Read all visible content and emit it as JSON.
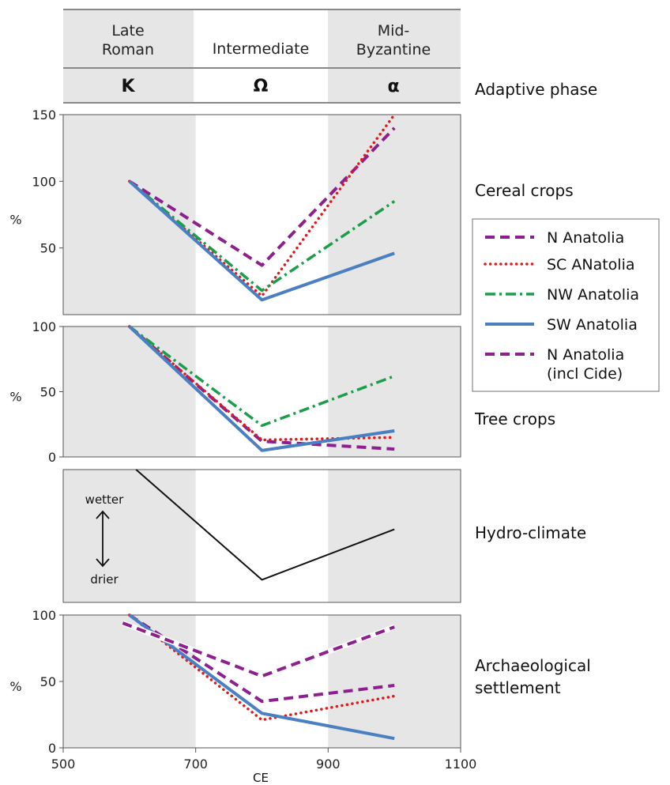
{
  "header": {
    "periods": [
      {
        "label_lines": [
          "Late",
          "Roman"
        ],
        "symbol": "K"
      },
      {
        "label_lines": [
          "Intermediate"
        ],
        "symbol": "Ω"
      },
      {
        "label_lines": [
          "Mid-",
          "Byzantine"
        ],
        "symbol": "α"
      }
    ],
    "row_label": "Adaptive phase"
  },
  "panel_labels": {
    "cereal": [
      "Cereal crops"
    ],
    "tree": [
      "Tree crops"
    ],
    "hydro": [
      "Hydro-climate"
    ],
    "arch": [
      "Archaeological",
      "settlement"
    ]
  },
  "hydro_axis": {
    "top": "wetter",
    "bottom": "drier"
  },
  "x_axis": {
    "title": "CE",
    "ticks": [
      "500",
      "700",
      "900",
      "1100"
    ]
  },
  "legend": [
    {
      "lines": [
        "N Anatolia"
      ],
      "color": "#8e1f8e",
      "style": "dash"
    },
    {
      "lines": [
        "SC ANatolia"
      ],
      "color": "#e0191b",
      "style": "dot"
    },
    {
      "lines": [
        "NW Anatolia"
      ],
      "color": "#1a9e4a",
      "style": "dashdot"
    },
    {
      "lines": [
        "SW Anatolia"
      ],
      "color": "#4a7fc1",
      "style": "solid"
    },
    {
      "lines": [
        "N Anatolia",
        "(incl Cide)"
      ],
      "color": "#8e1f8e",
      "style": "dash-outline"
    }
  ],
  "chart_data": [
    {
      "type": "line",
      "panel": "Cereal crops",
      "ylabel": "%",
      "ylim": [
        0,
        150
      ],
      "yticks": [
        "50",
        "100",
        "150"
      ],
      "xlim": [
        500,
        1100
      ],
      "shaded_ranges": [
        [
          500,
          700
        ],
        [
          900,
          1100
        ]
      ],
      "series": [
        {
          "name": "N Anatolia",
          "x": [
            600,
            800,
            1000
          ],
          "y": [
            100,
            37,
            140
          ],
          "color": "#8e1f8e",
          "style": "dash"
        },
        {
          "name": "SC ANatolia",
          "x": [
            600,
            800,
            1000
          ],
          "y": [
            100,
            14,
            150
          ],
          "color": "#e0191b",
          "style": "dot"
        },
        {
          "name": "NW Anatolia",
          "x": [
            600,
            800,
            1000
          ],
          "y": [
            100,
            18,
            85
          ],
          "color": "#1a9e4a",
          "style": "dashdot"
        },
        {
          "name": "SW Anatolia",
          "x": [
            600,
            800,
            1000
          ],
          "y": [
            100,
            11,
            46
          ],
          "color": "#4a7fc1",
          "style": "solid"
        }
      ]
    },
    {
      "type": "line",
      "panel": "Tree crops",
      "ylabel": "%",
      "ylim": [
        0,
        100
      ],
      "yticks": [
        "0",
        "50",
        "100"
      ],
      "xlim": [
        500,
        1100
      ],
      "shaded_ranges": [
        [
          500,
          700
        ],
        [
          900,
          1100
        ]
      ],
      "series": [
        {
          "name": "N Anatolia",
          "x": [
            600,
            800,
            1000
          ],
          "y": [
            100,
            12,
            6
          ],
          "color": "#8e1f8e",
          "style": "dash"
        },
        {
          "name": "SC ANatolia",
          "x": [
            600,
            800,
            1000
          ],
          "y": [
            100,
            13,
            15
          ],
          "color": "#e0191b",
          "style": "dot"
        },
        {
          "name": "NW Anatolia",
          "x": [
            600,
            800,
            1000
          ],
          "y": [
            100,
            24,
            62
          ],
          "color": "#1a9e4a",
          "style": "dashdot"
        },
        {
          "name": "SW Anatolia",
          "x": [
            600,
            800,
            1000
          ],
          "y": [
            100,
            5,
            20
          ],
          "color": "#4a7fc1",
          "style": "solid"
        }
      ]
    },
    {
      "type": "line",
      "panel": "Hydro-climate",
      "ylim": [
        0,
        100
      ],
      "xlim": [
        500,
        1100
      ],
      "shaded_ranges": [
        [
          500,
          700
        ],
        [
          900,
          1100
        ]
      ],
      "series": [
        {
          "x": [
            610,
            800,
            1000
          ],
          "y": [
            100,
            17,
            55
          ],
          "color": "#111111",
          "style": "solid"
        }
      ]
    },
    {
      "type": "line",
      "panel": "Archaeological settlement",
      "ylabel": "%",
      "ylim": [
        0,
        100
      ],
      "yticks": [
        "0",
        "50",
        "100"
      ],
      "xlim": [
        500,
        1100
      ],
      "shaded_ranges": [
        [
          500,
          700
        ],
        [
          900,
          1100
        ]
      ],
      "series": [
        {
          "name": "N Anatolia",
          "x": [
            600,
            800,
            1000
          ],
          "y": [
            100,
            35,
            47
          ],
          "color": "#8e1f8e",
          "style": "dash"
        },
        {
          "name": "SC ANatolia",
          "x": [
            600,
            800,
            1000
          ],
          "y": [
            100,
            21,
            39
          ],
          "color": "#e0191b",
          "style": "dot"
        },
        {
          "name": "SW Anatolia",
          "x": [
            600,
            800,
            1000
          ],
          "y": [
            100,
            26,
            7
          ],
          "color": "#4a7fc1",
          "style": "solid"
        },
        {
          "name": "N Anatolia (incl Cide)",
          "x": [
            590,
            800,
            1000
          ],
          "y": [
            94,
            54,
            91
          ],
          "color": "#8e1f8e",
          "style": "dash-outline"
        }
      ]
    }
  ]
}
